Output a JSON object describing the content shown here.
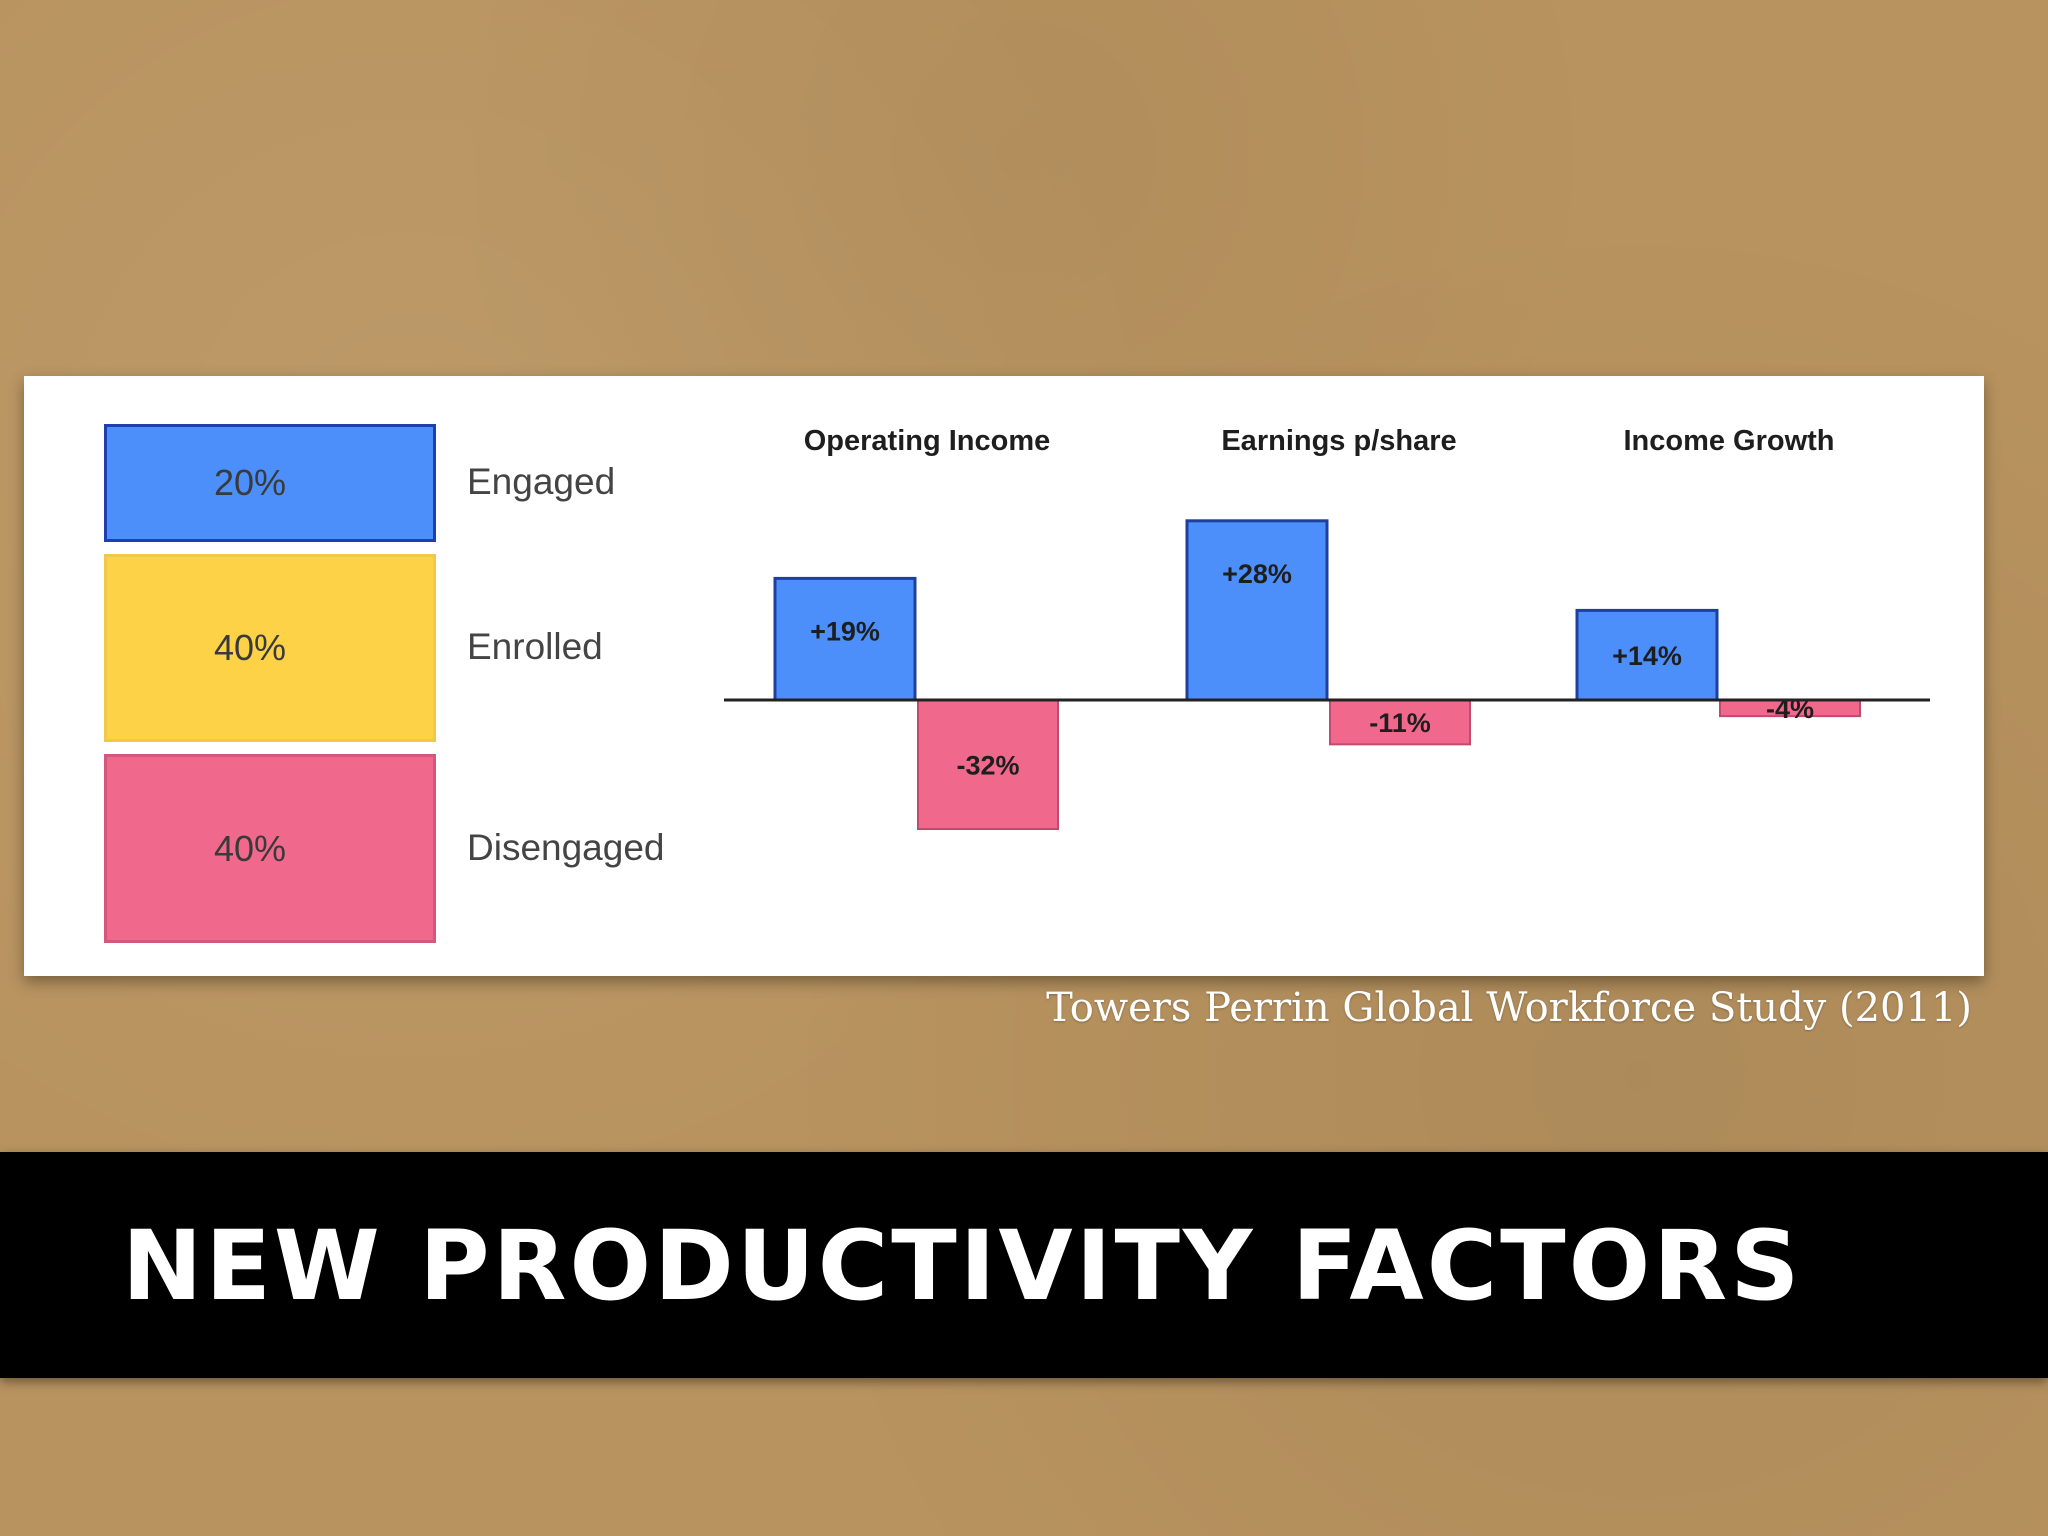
{
  "title": "NEW PRODUCTIVITY FACTORS",
  "source": "Towers Perrin Global Workforce Study (2011)",
  "colors": {
    "engaged": "#4d8ffa",
    "enrolled": "#fdd247",
    "disengaged": "#f0698d",
    "positive_bar": "#4d8ffa",
    "negative_bar": "#f0698d",
    "engaged_border": "#1f3fae",
    "enrolled_border": "#f0c84a",
    "disengaged_border": "#d6577e",
    "bar_border": "#1f3f9e",
    "neg_border": "#c24a6e"
  },
  "chart_data": [
    {
      "type": "bar",
      "stacked": true,
      "title": "",
      "categories": [
        "Engaged",
        "Enrolled",
        "Disengaged"
      ],
      "values": [
        20,
        40,
        40
      ],
      "value_labels": [
        "20%",
        "40%",
        "40%"
      ],
      "unit": "%"
    },
    {
      "type": "bar",
      "title": "",
      "categories": [
        "Operating Income",
        "Earnings p/share",
        "Income Growth"
      ],
      "series": [
        {
          "values": [
            19,
            28,
            14
          ],
          "labels": [
            "+19%",
            "+28%",
            "+14%"
          ]
        },
        {
          "values": [
            -32,
            -11,
            -4
          ],
          "labels": [
            "-32%",
            "-11%",
            "-4%"
          ]
        }
      ],
      "unit": "%",
      "grid": false
    }
  ]
}
